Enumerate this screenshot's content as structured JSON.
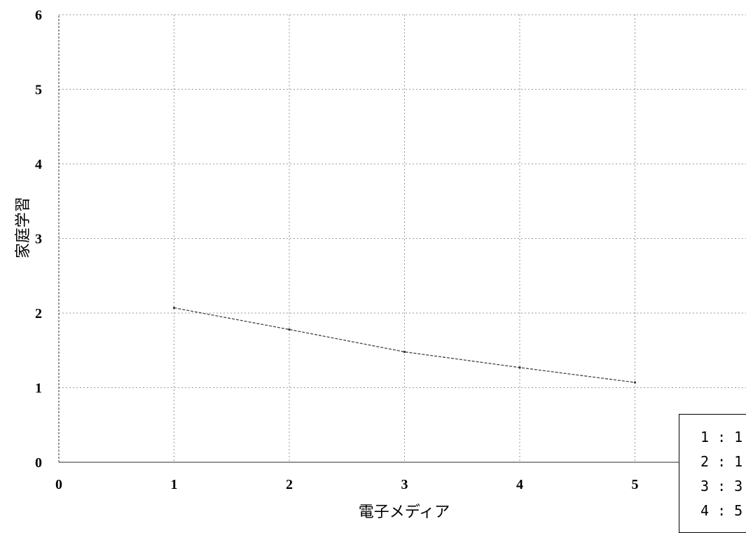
{
  "chart_data": {
    "type": "line",
    "xlabel": "電子メディア",
    "ylabel": "家庭学習",
    "xlim": [
      0,
      6
    ],
    "ylim": [
      0,
      6
    ],
    "x_ticks": [
      "0",
      "1",
      "2",
      "3",
      "4",
      "5"
    ],
    "y_ticks": [
      "0",
      "1",
      "2",
      "3",
      "4",
      "5",
      "6"
    ],
    "grid": true,
    "series": [
      {
        "x": [
          1,
          2,
          3,
          4,
          5
        ],
        "y": [
          2.07,
          1.78,
          1.48,
          1.27,
          1.07
        ]
      }
    ],
    "legend": {
      "placement": "bottom-right",
      "entries": [
        "1 : 1",
        "2 : 1",
        "3 : 3",
        "4 : 5"
      ]
    }
  }
}
